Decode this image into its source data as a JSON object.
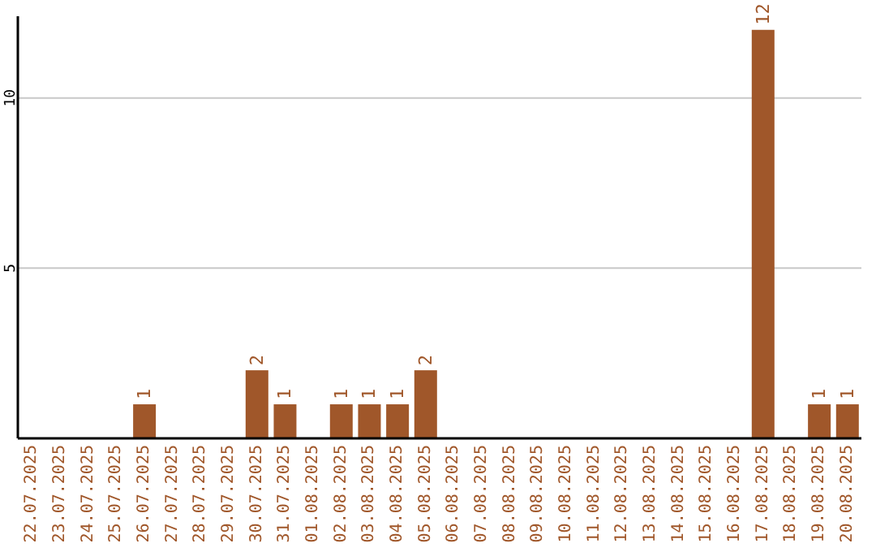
{
  "chart_data": {
    "type": "bar",
    "categories": [
      "22.07.2025",
      "23.07.2025",
      "24.07.2025",
      "25.07.2025",
      "26.07.2025",
      "27.07.2025",
      "28.07.2025",
      "29.07.2025",
      "30.07.2025",
      "31.07.2025",
      "01.08.2025",
      "02.08.2025",
      "03.08.2025",
      "04.08.2025",
      "05.08.2025",
      "06.08.2025",
      "07.08.2025",
      "08.08.2025",
      "09.08.2025",
      "10.08.2025",
      "11.08.2025",
      "12.08.2025",
      "13.08.2025",
      "14.08.2025",
      "15.08.2025",
      "16.08.2025",
      "17.08.2025",
      "18.08.2025",
      "19.08.2025",
      "20.08.2025"
    ],
    "values": [
      0,
      0,
      0,
      0,
      1,
      0,
      0,
      0,
      2,
      1,
      0,
      1,
      1,
      1,
      2,
      0,
      0,
      0,
      0,
      0,
      0,
      0,
      0,
      0,
      0,
      0,
      12,
      0,
      1,
      1
    ],
    "value_labels": [
      null,
      null,
      null,
      null,
      "1",
      null,
      null,
      null,
      "2",
      "1",
      null,
      "1",
      "1",
      "1",
      "2",
      null,
      null,
      null,
      null,
      null,
      null,
      null,
      null,
      null,
      null,
      null,
      "12",
      null,
      "1",
      "1"
    ],
    "color": "#a0572a",
    "ylim": [
      0,
      12.4
    ],
    "yticks": [
      5,
      10
    ],
    "grid": "y"
  }
}
